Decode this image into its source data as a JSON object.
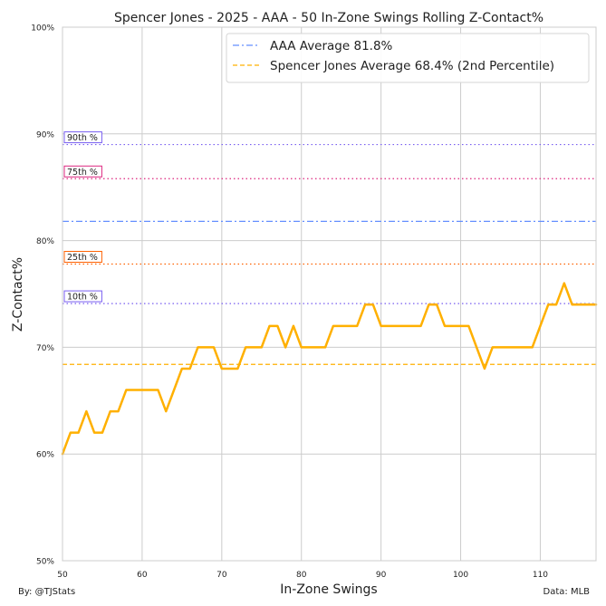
{
  "chart_data": {
    "type": "line",
    "title": "Spencer Jones - 2025 - AAA - 50 In-Zone Swings Rolling Z-Contact%",
    "xlabel": "In-Zone Swings",
    "ylabel": "Z-Contact%",
    "xlim": [
      50,
      117
    ],
    "ylim": [
      0.5,
      1.0
    ],
    "x_ticks": [
      50,
      60,
      70,
      80,
      90,
      100,
      110
    ],
    "x_tick_labels": [
      "50",
      "60",
      "70",
      "80",
      "90",
      "100",
      "110"
    ],
    "y_ticks": [
      0.5,
      0.6,
      0.7,
      0.8,
      0.9,
      1.0
    ],
    "y_tick_labels": [
      "50%",
      "60%",
      "70%",
      "80%",
      "90%",
      "100%"
    ],
    "grid": true,
    "legend_position": "top-right",
    "series": [
      {
        "name": "Spencer Jones",
        "color": "#FFB000",
        "x": [
          50,
          51,
          52,
          53,
          54,
          55,
          56,
          57,
          58,
          59,
          60,
          61,
          62,
          63,
          64,
          65,
          66,
          67,
          68,
          69,
          70,
          71,
          72,
          73,
          74,
          75,
          76,
          77,
          78,
          79,
          80,
          81,
          82,
          83,
          84,
          85,
          86,
          87,
          88,
          89,
          90,
          91,
          92,
          93,
          94,
          95,
          96,
          97,
          98,
          99,
          100,
          101,
          102,
          103,
          104,
          105,
          106,
          107,
          108,
          109,
          110,
          111,
          112,
          113,
          114,
          115,
          116,
          117
        ],
        "values": [
          0.6,
          0.62,
          0.62,
          0.64,
          0.62,
          0.62,
          0.64,
          0.64,
          0.66,
          0.66,
          0.66,
          0.66,
          0.66,
          0.64,
          0.66,
          0.68,
          0.68,
          0.7,
          0.7,
          0.7,
          0.68,
          0.68,
          0.68,
          0.7,
          0.7,
          0.7,
          0.72,
          0.72,
          0.7,
          0.72,
          0.7,
          0.7,
          0.7,
          0.7,
          0.72,
          0.72,
          0.72,
          0.72,
          0.74,
          0.74,
          0.72,
          0.72,
          0.72,
          0.72,
          0.72,
          0.72,
          0.74,
          0.74,
          0.72,
          0.72,
          0.72,
          0.72,
          0.7,
          0.68,
          0.7,
          0.7,
          0.7,
          0.7,
          0.7,
          0.7,
          0.72,
          0.74,
          0.74,
          0.76,
          0.74,
          0.74,
          0.74,
          0.74
        ]
      }
    ],
    "reference_lines": [
      {
        "label": "AAA Average 81.8%",
        "value": 0.818,
        "color": "#648FFF",
        "style": "dashdot",
        "legend": true
      },
      {
        "label": "Spencer Jones Average 68.4% (2nd Percentile)",
        "value": 0.684,
        "color": "#FFB000",
        "style": "dashed",
        "legend": true
      },
      {
        "label": "90th %",
        "value": 0.89,
        "color": "#785EF0",
        "style": "dotted",
        "legend": false
      },
      {
        "label": "75th %",
        "value": 0.858,
        "color": "#DC267F",
        "style": "dotted",
        "legend": false
      },
      {
        "label": "25th %",
        "value": 0.778,
        "color": "#FE6100",
        "style": "dotted",
        "legend": false
      },
      {
        "label": "10th %",
        "value": 0.741,
        "color": "#785EF0",
        "style": "dotted",
        "legend": false
      }
    ]
  },
  "footer": {
    "left": "By: @TJStats",
    "right": "Data: MLB"
  }
}
